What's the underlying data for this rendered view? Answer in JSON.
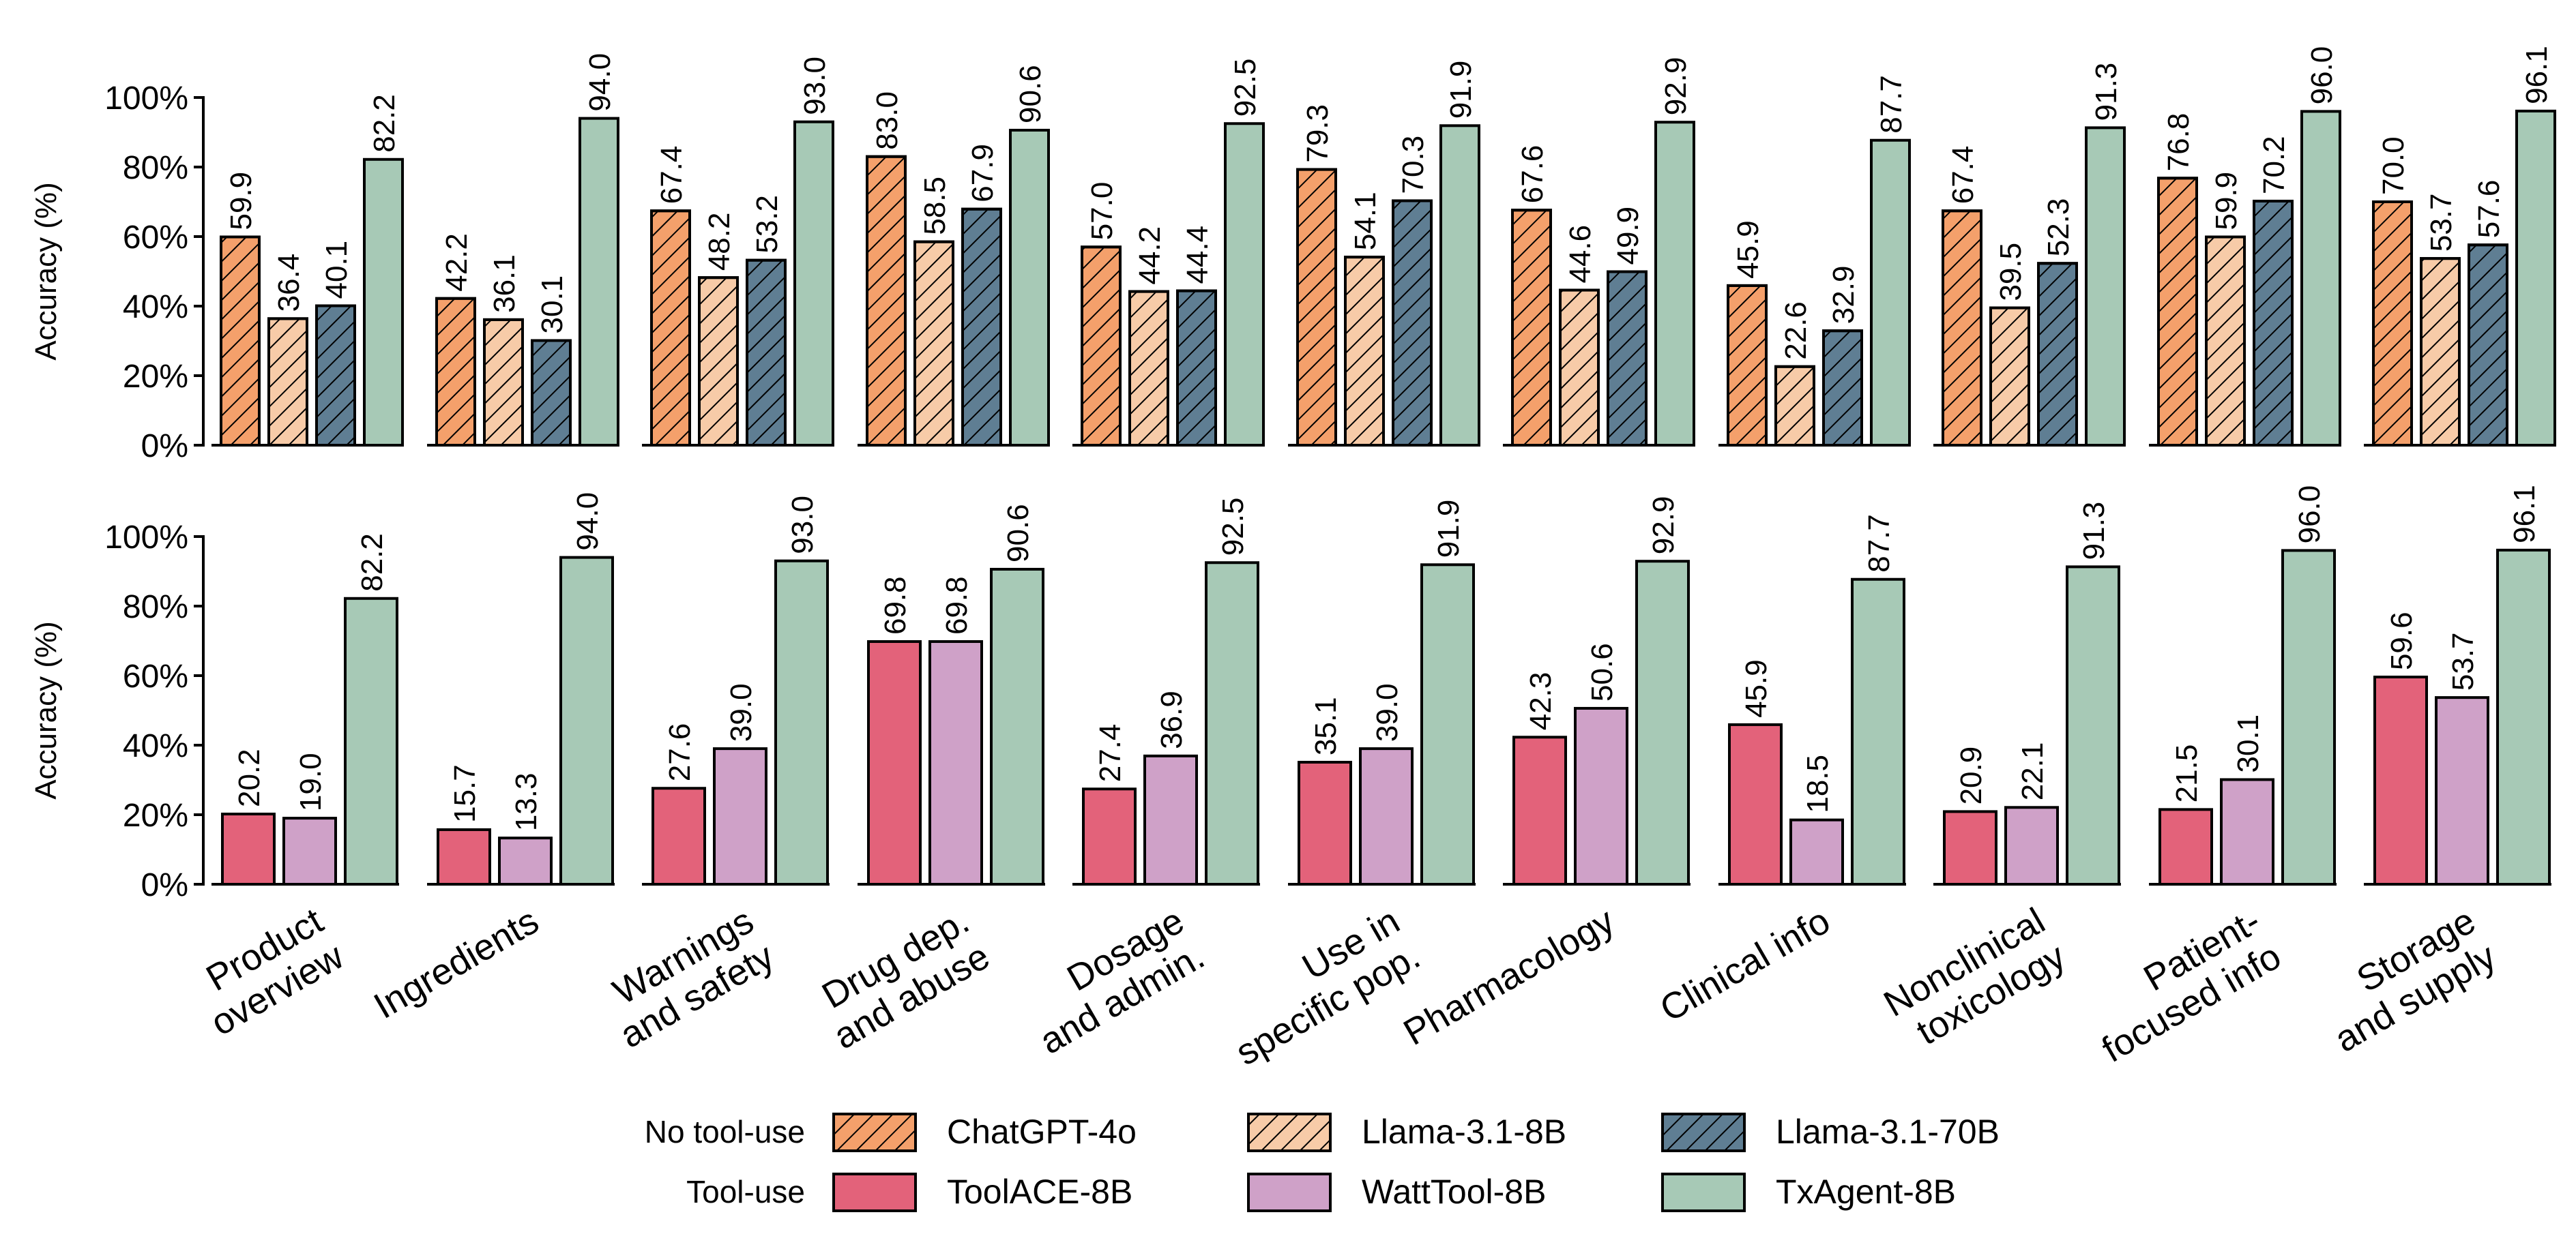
{
  "chart_data": [
    {
      "type": "bar",
      "panel": "top",
      "ylabel": "Accuracy (%)",
      "ylim": [
        0,
        100
      ],
      "yticks": [
        "0%",
        "20%",
        "40%",
        "60%",
        "80%",
        "100%"
      ],
      "categories": [
        "Product overview",
        "Ingredients",
        "Warnings and safety",
        "Drug dep. and abuse",
        "Dosage and admin.",
        "Use in specific pop.",
        "Pharmacology",
        "Clinical info",
        "Nonclinical toxicology",
        "Patient-focused info",
        "Storage and supply"
      ],
      "series": [
        {
          "name": "ChatGPT-4o",
          "values": [
            59.9,
            42.2,
            67.4,
            83.0,
            57.0,
            79.3,
            67.6,
            45.9,
            67.4,
            76.8,
            70.0
          ]
        },
        {
          "name": "Llama-3.1-8B",
          "values": [
            36.4,
            36.1,
            48.2,
            58.5,
            44.2,
            54.1,
            44.6,
            22.6,
            39.5,
            59.9,
            53.7
          ]
        },
        {
          "name": "Llama-3.1-70B",
          "values": [
            40.1,
            30.1,
            53.2,
            67.9,
            44.4,
            70.3,
            49.9,
            32.9,
            52.3,
            70.2,
            57.6
          ]
        },
        {
          "name": "TxAgent-8B",
          "values": [
            82.2,
            94.0,
            93.0,
            90.6,
            92.5,
            91.9,
            92.9,
            87.7,
            91.3,
            96.0,
            96.1
          ]
        }
      ]
    },
    {
      "type": "bar",
      "panel": "bottom",
      "ylabel": "Accuracy (%)",
      "ylim": [
        0,
        100
      ],
      "yticks": [
        "0%",
        "20%",
        "40%",
        "60%",
        "80%",
        "100%"
      ],
      "categories": [
        "Product overview",
        "Ingredients",
        "Warnings and safety",
        "Drug dep. and abuse",
        "Dosage and admin.",
        "Use in specific pop.",
        "Pharmacology",
        "Clinical info",
        "Nonclinical toxicology",
        "Patient-focused info",
        "Storage and supply"
      ],
      "series": [
        {
          "name": "ToolACE-8B",
          "values": [
            20.2,
            15.7,
            27.6,
            69.8,
            27.4,
            35.1,
            42.3,
            45.9,
            20.9,
            21.5,
            59.6
          ]
        },
        {
          "name": "WattTool-8B",
          "values": [
            19.0,
            13.3,
            39.0,
            69.8,
            36.9,
            39.0,
            50.6,
            18.5,
            22.1,
            30.1,
            53.7
          ]
        },
        {
          "name": "TxAgent-8B",
          "values": [
            82.2,
            94.0,
            93.0,
            90.6,
            92.5,
            91.9,
            92.9,
            87.7,
            91.3,
            96.0,
            96.1
          ]
        }
      ]
    }
  ],
  "category_lines": [
    [
      "Product",
      "overview"
    ],
    [
      "Ingredients"
    ],
    [
      "Warnings",
      "and safety"
    ],
    [
      "Drug dep.",
      "and abuse"
    ],
    [
      "Dosage",
      "and admin."
    ],
    [
      "Use in",
      "specific pop."
    ],
    [
      "Pharmacology"
    ],
    [
      "Clinical info"
    ],
    [
      "Nonclinical",
      "toxicology"
    ],
    [
      "Patient-",
      "focused info"
    ],
    [
      "Storage",
      "and supply"
    ]
  ],
  "legend": {
    "row_labels": [
      "No tool-use",
      "Tool-use"
    ],
    "rows": [
      [
        "ChatGPT-4o",
        "Llama-3.1-8B",
        "Llama-3.1-70B"
      ],
      [
        "ToolACE-8B",
        "WattTool-8B",
        "TxAgent-8B"
      ]
    ]
  },
  "colors": {
    "ChatGPT-4o": "#f4a06b",
    "Llama-3.1-8B": "#f7cba8",
    "Llama-3.1-70B": "#5f7e93",
    "TxAgent-8B": "#a7c9b6",
    "ToolACE-8B": "#e3627a",
    "WattTool-8B": "#cfa1c8"
  },
  "hatched": [
    "ChatGPT-4o",
    "Llama-3.1-8B",
    "Llama-3.1-70B"
  ]
}
